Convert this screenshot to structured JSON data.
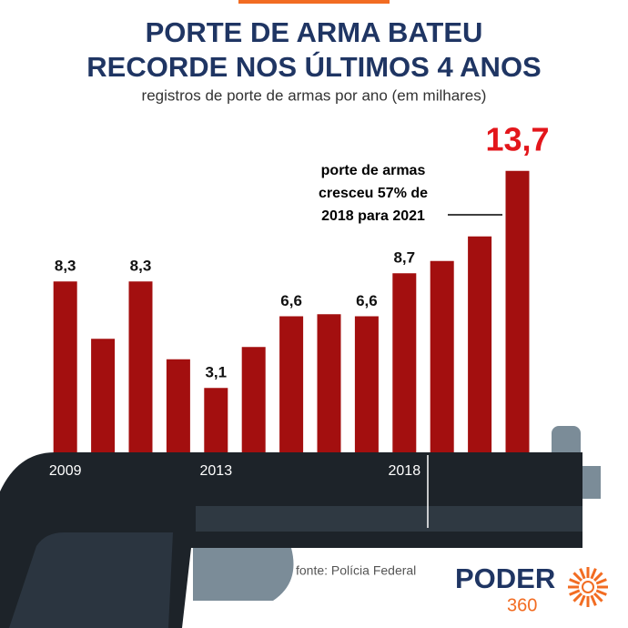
{
  "chart_data": {
    "type": "bar",
    "title": [
      "PORTE DE ARMA BATEU",
      "RECORDE NOS ÚLTIMOS 4 ANOS"
    ],
    "subtitle": "registros de porte de armas por ano (em milhares)",
    "categories": [
      "2009",
      null,
      null,
      null,
      "2013",
      null,
      null,
      null,
      null,
      "2018",
      null,
      null,
      null
    ],
    "values": [
      8.3,
      5.5,
      8.3,
      4.5,
      3.1,
      5.1,
      6.6,
      6.7,
      6.6,
      8.7,
      9.3,
      10.5,
      13.7
    ],
    "value_labels": [
      "8,3",
      null,
      "8,3",
      null,
      "3,1",
      null,
      "6,6",
      null,
      "6,6",
      "8,7",
      null,
      null,
      "13,7"
    ],
    "color": "#a30f0f",
    "highlight_color": "#e3161b",
    "ylim": [
      0,
      14
    ],
    "annotation": [
      "porte de armas",
      "cresceu 57% de",
      "2018 para 2021"
    ],
    "source": "fonte: Polícia Federal",
    "logo": {
      "name": "PODER",
      "number": "360"
    }
  }
}
